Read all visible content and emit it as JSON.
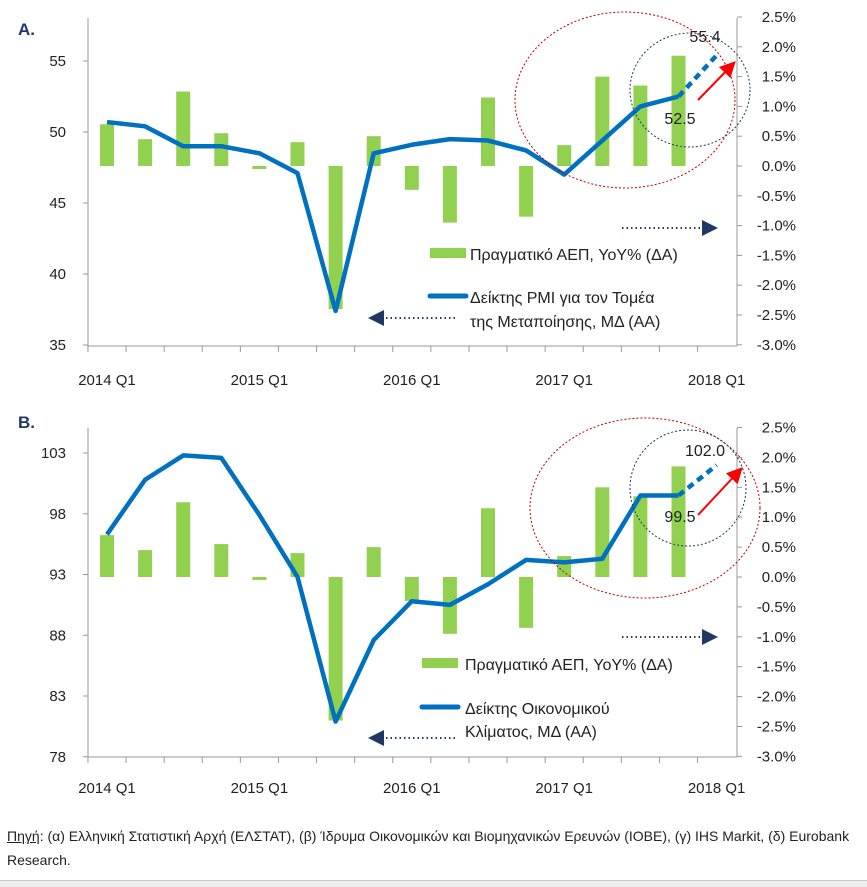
{
  "colors": {
    "bar": "#92d050",
    "line": "#0070c0",
    "title": "#1f3864",
    "red_ellipse": "#c00000",
    "blue_ellipse": "#1f3864",
    "red_arrow": "#ff0000",
    "nav_arrow": "#1f3864"
  },
  "chart_data": [
    {
      "type": "bar+line",
      "panel_label": "A.",
      "x": [
        "2014 Q1",
        "2014 Q2",
        "2014 Q3",
        "2014 Q4",
        "2015 Q1",
        "2015 Q2",
        "2015 Q3",
        "2015 Q4",
        "2016 Q1",
        "2016 Q2",
        "2016 Q3",
        "2016 Q4",
        "2017 Q1",
        "2017 Q2",
        "2017 Q3",
        "2017 Q4",
        "2018 Q1"
      ],
      "x_tick_labels": [
        "2014 Q1",
        "2015 Q1",
        "2016 Q1",
        "2017 Q1",
        "2018 Q1"
      ],
      "left_axis": {
        "ylim": [
          35,
          58
        ],
        "ticks": [
          35,
          40,
          45,
          50,
          55
        ]
      },
      "right_axis": {
        "ylim": [
          -3.0,
          2.5
        ],
        "ticks": [
          "-3.0%",
          "-2.5%",
          "-2.0%",
          "-1.5%",
          "-1.0%",
          "-0.5%",
          "0.0%",
          "0.5%",
          "1.0%",
          "1.5%",
          "2.0%",
          "2.5%"
        ]
      },
      "series": [
        {
          "name": "Πραγματικό ΑΕΠ, YoY% (ΔΑ)",
          "axis": "right",
          "kind": "bar",
          "values": [
            0.7,
            0.45,
            1.25,
            0.55,
            -0.05,
            0.4,
            -2.4,
            0.5,
            -0.4,
            -0.95,
            1.15,
            -0.85,
            0.35,
            1.5,
            1.35,
            1.85,
            null
          ]
        },
        {
          "name_lines": [
            "Δείκτης PMI για τον Τομέα",
            "της Μεταποίησης, ΜΔ (ΑΑ)"
          ],
          "axis": "left",
          "kind": "line",
          "values": [
            50.7,
            50.4,
            49.0,
            49.0,
            48.5,
            47.1,
            37.4,
            48.5,
            49.1,
            49.5,
            49.4,
            48.7,
            47.0,
            49.4,
            51.8,
            52.5,
            55.4
          ],
          "dashed_last_segment": true
        }
      ],
      "annotations": [
        "55.4",
        "52.5"
      ]
    },
    {
      "type": "bar+line",
      "panel_label": "B.",
      "x": [
        "2014 Q1",
        "2014 Q2",
        "2014 Q3",
        "2014 Q4",
        "2015 Q1",
        "2015 Q2",
        "2015 Q3",
        "2015 Q4",
        "2016 Q1",
        "2016 Q2",
        "2016 Q3",
        "2016 Q4",
        "2017 Q1",
        "2017 Q2",
        "2017 Q3",
        "2017 Q4",
        "2018 Q1"
      ],
      "x_tick_labels": [
        "2014 Q1",
        "2015 Q1",
        "2016 Q1",
        "2017 Q1",
        "2018 Q1"
      ],
      "left_axis": {
        "ylim": [
          78,
          105
        ],
        "ticks": [
          78,
          83,
          88,
          93,
          98,
          103
        ]
      },
      "right_axis": {
        "ylim": [
          -3.0,
          2.5
        ],
        "ticks": [
          "-3.0%",
          "-2.5%",
          "-2.0%",
          "-1.5%",
          "-1.0%",
          "-0.5%",
          "0.0%",
          "0.5%",
          "1.0%",
          "1.5%",
          "2.0%",
          "2.5%"
        ]
      },
      "series": [
        {
          "name": "Πραγματικό ΑΕΠ, YoY% (ΔΑ)",
          "axis": "right",
          "kind": "bar",
          "values": [
            0.7,
            0.45,
            1.25,
            0.55,
            -0.05,
            0.4,
            -2.4,
            0.5,
            -0.4,
            -0.95,
            1.15,
            -0.85,
            0.35,
            1.5,
            1.35,
            1.85,
            null
          ]
        },
        {
          "name_lines": [
            "Δείκτης Οικονομικού",
            "Κλίματος, ΜΔ (ΑΑ)"
          ],
          "axis": "left",
          "kind": "line",
          "values": [
            96.3,
            100.8,
            102.8,
            102.6,
            97.9,
            92.8,
            80.9,
            87.6,
            90.8,
            90.5,
            92.2,
            94.2,
            94.0,
            94.3,
            99.5,
            99.5,
            102.0
          ],
          "dashed_last_segment": true
        }
      ],
      "annotations": [
        "102.0",
        "99.5"
      ]
    }
  ],
  "footnote": {
    "source_label": "Πηγή",
    "text": ": (α) Ελληνική Στατιστική Αρχή (ΕΛΣΤΑΤ), (β) Ίδρυμα Οικονομικών και Βιομηχανικών Ερευνών (ΙΟΒΕ), (γ) IHS Markit, (δ) Eurobank Research."
  }
}
